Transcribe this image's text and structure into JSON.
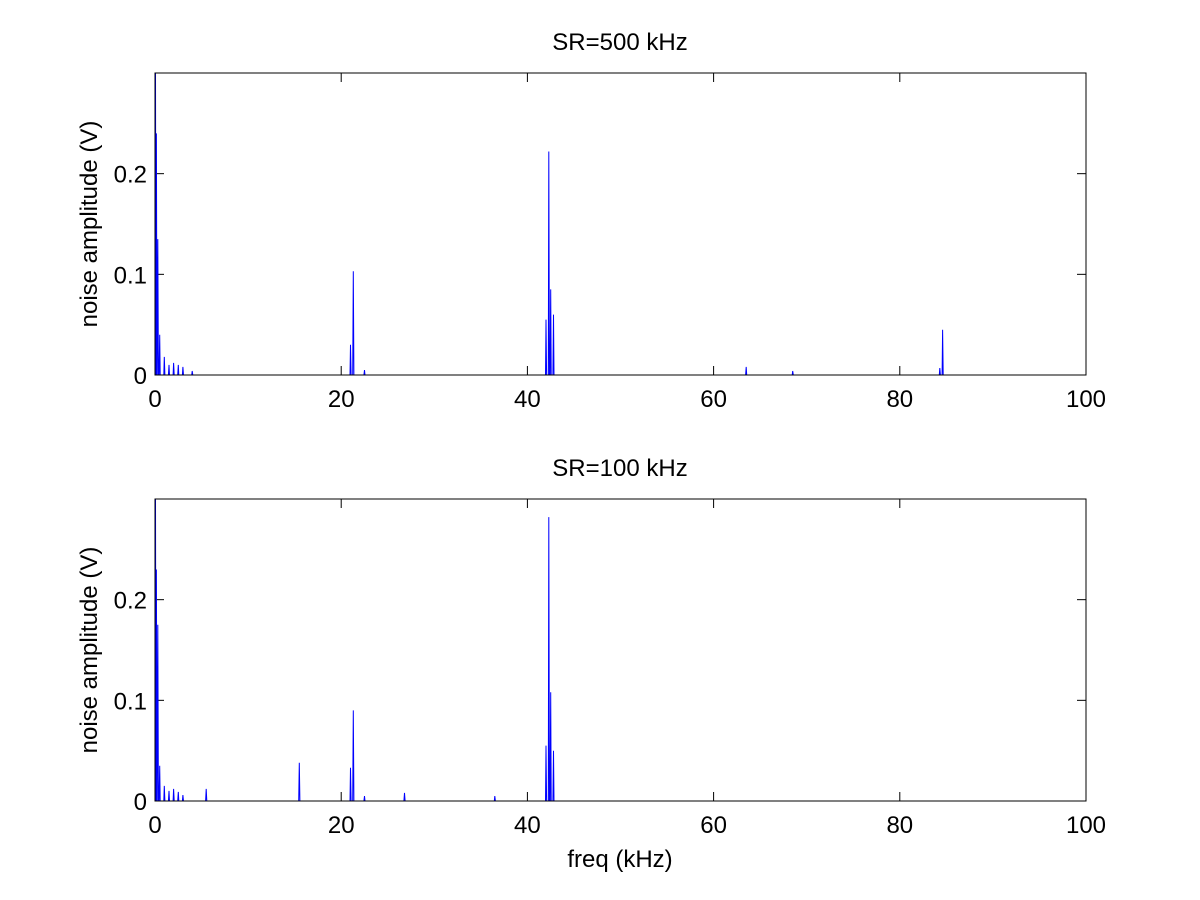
{
  "chart_data": [
    {
      "type": "line",
      "title": "SR=500 kHz",
      "xlabel": "",
      "ylabel": "noise amplitude (V)",
      "xlim": [
        0,
        100
      ],
      "ylim": [
        0,
        0.3
      ],
      "xticks": [
        0,
        20,
        40,
        60,
        80,
        100
      ],
      "yticks": [
        0,
        0.1,
        0.2
      ],
      "xtick_labels": [
        "0",
        "20",
        "40",
        "60",
        "80",
        "100"
      ],
      "ytick_labels": [
        "0",
        "0.1",
        "0.2"
      ],
      "grid": false,
      "color": "#0000ff",
      "peaks": [
        {
          "x": 0.05,
          "y": 0.3
        },
        {
          "x": 0.15,
          "y": 0.24
        },
        {
          "x": 0.3,
          "y": 0.135
        },
        {
          "x": 0.5,
          "y": 0.04
        },
        {
          "x": 1.0,
          "y": 0.018
        },
        {
          "x": 1.5,
          "y": 0.01
        },
        {
          "x": 2.0,
          "y": 0.012
        },
        {
          "x": 2.5,
          "y": 0.01
        },
        {
          "x": 3.0,
          "y": 0.008
        },
        {
          "x": 4.0,
          "y": 0.004
        },
        {
          "x": 21.0,
          "y": 0.03
        },
        {
          "x": 21.3,
          "y": 0.103
        },
        {
          "x": 22.5,
          "y": 0.005
        },
        {
          "x": 42.0,
          "y": 0.055
        },
        {
          "x": 42.3,
          "y": 0.222
        },
        {
          "x": 42.5,
          "y": 0.085
        },
        {
          "x": 42.8,
          "y": 0.06
        },
        {
          "x": 63.5,
          "y": 0.008
        },
        {
          "x": 68.5,
          "y": 0.004
        },
        {
          "x": 84.3,
          "y": 0.007
        },
        {
          "x": 84.6,
          "y": 0.045
        }
      ],
      "x_end": 100
    },
    {
      "type": "line",
      "title": "SR=100 kHz",
      "xlabel": "freq (kHz)",
      "ylabel": "noise amplitude (V)",
      "xlim": [
        0,
        100
      ],
      "ylim": [
        0,
        0.3
      ],
      "xticks": [
        0,
        20,
        40,
        60,
        80,
        100
      ],
      "yticks": [
        0,
        0.1,
        0.2
      ],
      "xtick_labels": [
        "0",
        "20",
        "40",
        "60",
        "80",
        "100"
      ],
      "ytick_labels": [
        "0",
        "0.1",
        "0.2"
      ],
      "grid": false,
      "color": "#0000ff",
      "peaks": [
        {
          "x": 0.05,
          "y": 0.3
        },
        {
          "x": 0.15,
          "y": 0.23
        },
        {
          "x": 0.3,
          "y": 0.175
        },
        {
          "x": 0.5,
          "y": 0.035
        },
        {
          "x": 1.0,
          "y": 0.015
        },
        {
          "x": 1.5,
          "y": 0.01
        },
        {
          "x": 2.0,
          "y": 0.012
        },
        {
          "x": 2.5,
          "y": 0.009
        },
        {
          "x": 3.0,
          "y": 0.006
        },
        {
          "x": 5.5,
          "y": 0.012
        },
        {
          "x": 15.5,
          "y": 0.038
        },
        {
          "x": 21.0,
          "y": 0.033
        },
        {
          "x": 21.3,
          "y": 0.09
        },
        {
          "x": 22.5,
          "y": 0.005
        },
        {
          "x": 26.8,
          "y": 0.008
        },
        {
          "x": 36.5,
          "y": 0.005
        },
        {
          "x": 42.0,
          "y": 0.055
        },
        {
          "x": 42.3,
          "y": 0.282
        },
        {
          "x": 42.5,
          "y": 0.108
        },
        {
          "x": 42.8,
          "y": 0.05
        }
      ],
      "x_end": 50
    }
  ]
}
